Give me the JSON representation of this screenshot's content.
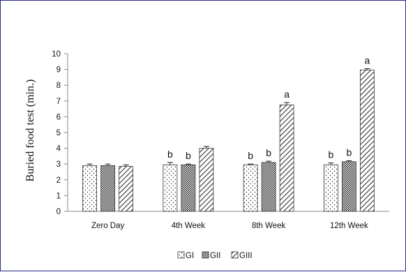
{
  "chart_data": {
    "type": "bar",
    "ylabel": "Buried food test  (min.)",
    "xlabel": "",
    "ylim": [
      0,
      10
    ],
    "yticks": [
      "0",
      "1",
      "2",
      "3",
      "4",
      "5",
      "6",
      "7",
      "8",
      "9",
      "10"
    ],
    "categories": [
      "Zero Day",
      "4th Week",
      "8th Week",
      "12th Week"
    ],
    "series": [
      {
        "name": "GI",
        "values": [
          2.9,
          2.95,
          2.95,
          2.95
        ],
        "errors": [
          0.1,
          0.15,
          0.05,
          0.12
        ],
        "labels": [
          "",
          "b",
          "b",
          "b"
        ],
        "pattern": "dots"
      },
      {
        "name": "GII",
        "values": [
          2.9,
          2.95,
          3.1,
          3.15
        ],
        "errors": [
          0.1,
          0.05,
          0.08,
          0.06
        ],
        "labels": [
          "",
          "b",
          "b",
          "b"
        ],
        "pattern": "crosshatch"
      },
      {
        "name": "GIII",
        "values": [
          2.85,
          4.0,
          6.75,
          8.97
        ],
        "errors": [
          0.1,
          0.12,
          0.15,
          0.08
        ],
        "labels": [
          "",
          "",
          "a",
          "a"
        ],
        "pattern": "diagonal"
      }
    ],
    "legend_position": "bottom",
    "grid": false
  }
}
